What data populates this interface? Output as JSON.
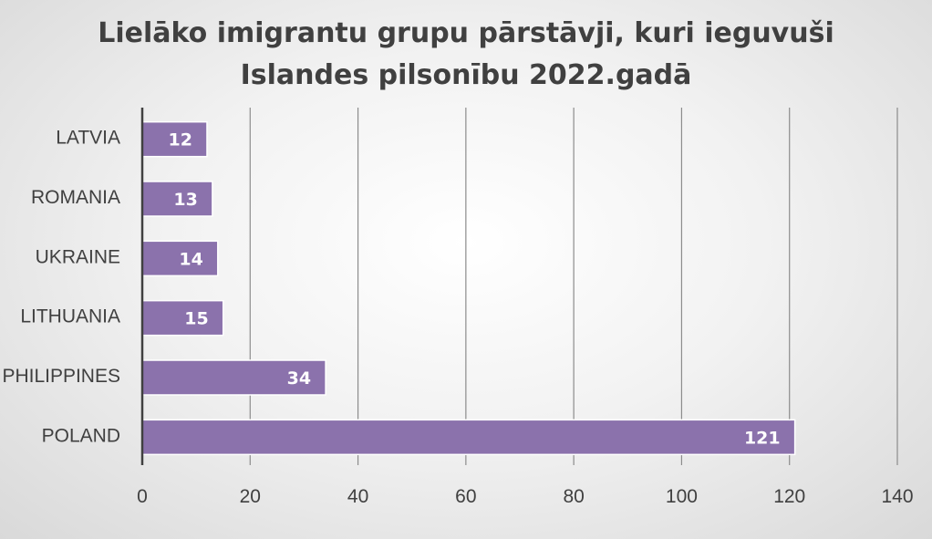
{
  "chart_data": {
    "type": "bar",
    "orientation": "horizontal",
    "title": "Lielāko imigrantu grupu pārstāvji, kuri ieguvuši Islandes pilsonību 2022.gadā",
    "title_lines": [
      "Lielāko imigrantu grupu pārstāvji, kuri ieguvuši",
      "Islandes pilsonību 2022.gadā"
    ],
    "categories": [
      "LATVIA",
      "ROMANIA",
      "UKRAINE",
      "LITHUANIA",
      "PHILIPPINES",
      "POLAND"
    ],
    "values": [
      12,
      13,
      14,
      15,
      34,
      121
    ],
    "xlim": [
      0,
      140
    ],
    "xticks": [
      0,
      20,
      40,
      60,
      80,
      100,
      120,
      140
    ],
    "xlabel": "",
    "ylabel": "",
    "grid": "vertical",
    "legend": "none",
    "data_labels": "inside-end",
    "bar_color": "#8B72AC",
    "bar_edge_color": "#ffffff",
    "axis_color": "#404040",
    "gridline_color": "#8c8c8c"
  }
}
